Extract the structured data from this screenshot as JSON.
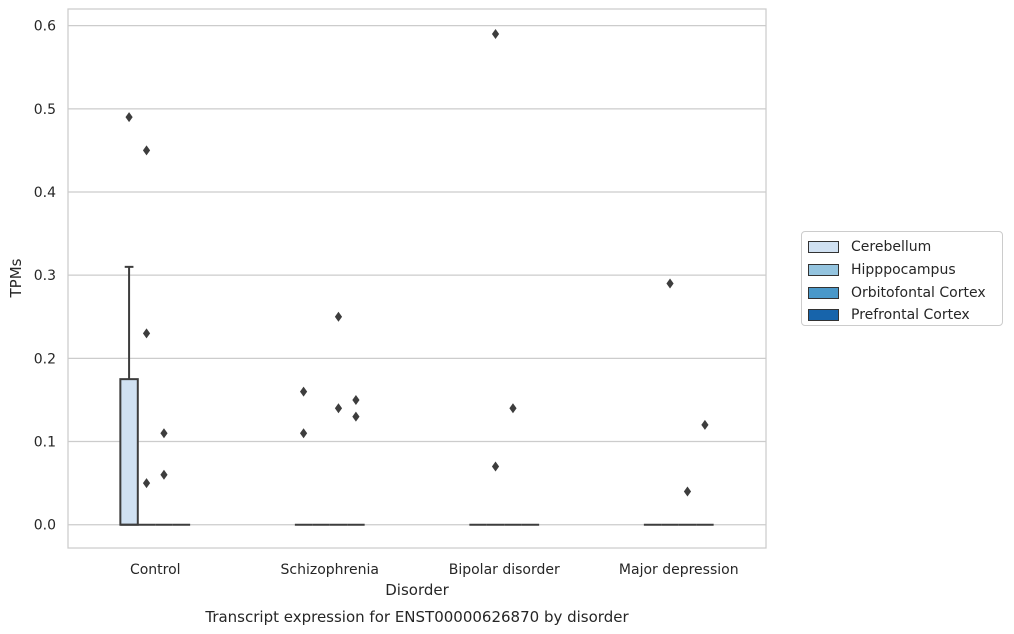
{
  "chart_data": {
    "type": "box",
    "title": "Transcript expression for ENST00000626870 by disorder",
    "xlabel": "Disorder",
    "ylabel": "TPMs",
    "ylim": [
      -0.028,
      0.62
    ],
    "yticks": [
      "0.0",
      "0.1",
      "0.2",
      "0.3",
      "0.4",
      "0.5",
      "0.6"
    ],
    "grid": true,
    "legend_position": "right",
    "categories": [
      "Control",
      "Schizophrenia",
      "Bipolar disorder",
      "Major depression"
    ],
    "series": [
      {
        "name": "Cerebellum",
        "color": "#d0e1f2",
        "boxes": [
          {
            "q1": 0.0,
            "median": 0.0,
            "q3": 0.175,
            "whisker_low": 0.0,
            "whisker_high": 0.31,
            "outliers": [
              0.49
            ]
          },
          {
            "q1": 0.0,
            "median": 0.0,
            "q3": 0.0,
            "whisker_low": 0.0,
            "whisker_high": 0.0,
            "outliers": [
              0.16,
              0.11
            ]
          },
          {
            "q1": 0.0,
            "median": 0.0,
            "q3": 0.0,
            "whisker_low": 0.0,
            "whisker_high": 0.0,
            "outliers": []
          },
          {
            "q1": 0.0,
            "median": 0.0,
            "q3": 0.0,
            "whisker_low": 0.0,
            "whisker_high": 0.0,
            "outliers": []
          }
        ]
      },
      {
        "name": "Hipppocampus",
        "color": "#94c4df",
        "boxes": [
          {
            "q1": 0.0,
            "median": 0.0,
            "q3": 0.0,
            "whisker_low": 0.0,
            "whisker_high": 0.0,
            "outliers": [
              0.45,
              0.23,
              0.05
            ]
          },
          {
            "q1": 0.0,
            "median": 0.0,
            "q3": 0.0,
            "whisker_low": 0.0,
            "whisker_high": 0.0,
            "outliers": []
          },
          {
            "q1": 0.0,
            "median": 0.0,
            "q3": 0.0,
            "whisker_low": 0.0,
            "whisker_high": 0.0,
            "outliers": [
              0.59,
              0.07
            ]
          },
          {
            "q1": 0.0,
            "median": 0.0,
            "q3": 0.0,
            "whisker_low": 0.0,
            "whisker_high": 0.0,
            "outliers": [
              0.29
            ]
          }
        ]
      },
      {
        "name": "Orbitofontal Cortex",
        "color": "#4a98c9",
        "boxes": [
          {
            "q1": 0.0,
            "median": 0.0,
            "q3": 0.0,
            "whisker_low": 0.0,
            "whisker_high": 0.0,
            "outliers": [
              0.11,
              0.06
            ]
          },
          {
            "q1": 0.0,
            "median": 0.0,
            "q3": 0.0,
            "whisker_low": 0.0,
            "whisker_high": 0.0,
            "outliers": [
              0.25,
              0.14
            ]
          },
          {
            "q1": 0.0,
            "median": 0.0,
            "q3": 0.0,
            "whisker_low": 0.0,
            "whisker_high": 0.0,
            "outliers": [
              0.14
            ]
          },
          {
            "q1": 0.0,
            "median": 0.0,
            "q3": 0.0,
            "whisker_low": 0.0,
            "whisker_high": 0.0,
            "outliers": [
              0.04
            ]
          }
        ]
      },
      {
        "name": "Prefrontal Cortex",
        "color": "#1764ab",
        "boxes": [
          {
            "q1": 0.0,
            "median": 0.0,
            "q3": 0.0,
            "whisker_low": 0.0,
            "whisker_high": 0.0,
            "outliers": []
          },
          {
            "q1": 0.0,
            "median": 0.0,
            "q3": 0.0,
            "whisker_low": 0.0,
            "whisker_high": 0.0,
            "outliers": [
              0.15,
              0.13
            ]
          },
          {
            "q1": 0.0,
            "median": 0.0,
            "q3": 0.0,
            "whisker_low": 0.0,
            "whisker_high": 0.0,
            "outliers": []
          },
          {
            "q1": 0.0,
            "median": 0.0,
            "q3": 0.0,
            "whisker_low": 0.0,
            "whisker_high": 0.0,
            "outliers": [
              0.12
            ]
          }
        ]
      }
    ]
  }
}
